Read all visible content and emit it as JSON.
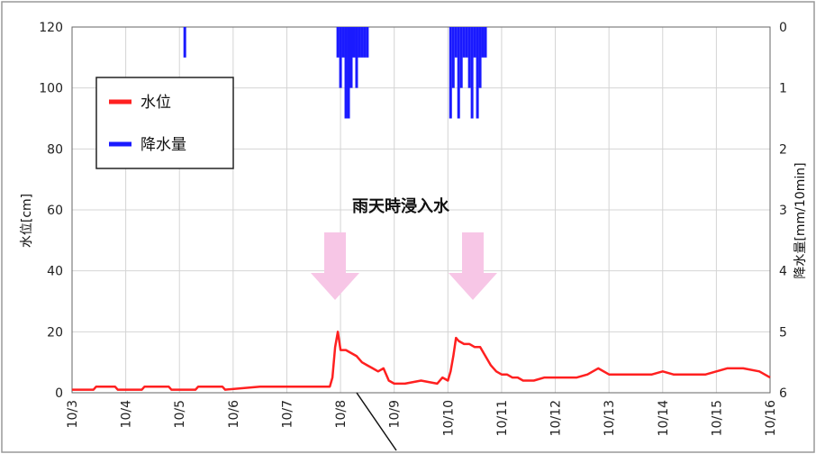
{
  "chart_data": {
    "type": "line",
    "title": "",
    "xlabel": "",
    "ylabel": "水位[cm]",
    "y2label": "降水量[mm/10min]",
    "ylim": [
      0,
      120
    ],
    "y2lim": [
      0,
      6
    ],
    "y2_inverted": true,
    "grid": true,
    "legend_position": "top-left",
    "x_ticks": [
      "10/3",
      "10/4",
      "10/5",
      "10/6",
      "10/7",
      "10/8",
      "10/9",
      "10/10",
      "10/11",
      "10/12",
      "10/13",
      "10/14",
      "10/15",
      "10/16"
    ],
    "y_ticks": [
      "0",
      "20",
      "40",
      "60",
      "80",
      "100",
      "120"
    ],
    "y2_ticks": [
      "0",
      "1",
      "2",
      "3",
      "4",
      "5",
      "6"
    ],
    "annotation": "雨天時浸入水",
    "series": [
      {
        "name": "水位",
        "color": "#ff2020",
        "x": [
          0,
          0.4,
          0.45,
          0.8,
          0.85,
          1.3,
          1.35,
          1.8,
          1.85,
          2.3,
          2.35,
          2.8,
          2.85,
          3.5,
          4.8,
          4.85,
          4.9,
          4.95,
          5.0,
          5.1,
          5.2,
          5.3,
          5.4,
          5.5,
          5.6,
          5.7,
          5.8,
          5.9,
          6.0,
          6.2,
          6.5,
          6.8,
          6.9,
          7.0,
          7.05,
          7.1,
          7.15,
          7.2,
          7.3,
          7.4,
          7.5,
          7.6,
          7.7,
          7.8,
          7.9,
          8.0,
          8.1,
          8.2,
          8.3,
          8.4,
          8.6,
          8.8,
          9.0,
          9.2,
          9.4,
          9.6,
          9.8,
          10.0,
          10.2,
          10.5,
          10.8,
          11.0,
          11.2,
          11.4,
          11.6,
          11.8,
          12.0,
          12.2,
          12.5,
          12.8,
          13.0
        ],
        "values": [
          1,
          1,
          2,
          2,
          1,
          1,
          2,
          2,
          1,
          1,
          2,
          2,
          1,
          2,
          2,
          5,
          15,
          20,
          14,
          14,
          13,
          12,
          10,
          9,
          8,
          7,
          8,
          4,
          3,
          3,
          4,
          3,
          5,
          4,
          7,
          12,
          18,
          17,
          16,
          16,
          15,
          15,
          12,
          9,
          7,
          6,
          6,
          5,
          5,
          4,
          4,
          5,
          5,
          5,
          5,
          6,
          8,
          6,
          6,
          6,
          6,
          7,
          6,
          6,
          6,
          6,
          7,
          8,
          8,
          7,
          5
        ]
      },
      {
        "name": "降水量",
        "color": "#1a1aff",
        "x": [
          2.1,
          4.95,
          5.0,
          5.05,
          5.1,
          5.15,
          5.2,
          5.25,
          5.3,
          5.35,
          5.4,
          5.45,
          5.5,
          7.05,
          7.1,
          7.15,
          7.2,
          7.25,
          7.3,
          7.35,
          7.4,
          7.45,
          7.5,
          7.55,
          7.6,
          7.65,
          7.7
        ],
        "values": [
          0.5,
          0.5,
          1.0,
          0.5,
          1.5,
          1.5,
          1.0,
          0.5,
          1.0,
          0.5,
          0.5,
          0.5,
          0.5,
          1.5,
          1.0,
          0.5,
          1.5,
          1.0,
          0.5,
          0.5,
          1.0,
          1.5,
          0.5,
          1.5,
          1.0,
          0.5,
          0.5
        ]
      }
    ]
  }
}
